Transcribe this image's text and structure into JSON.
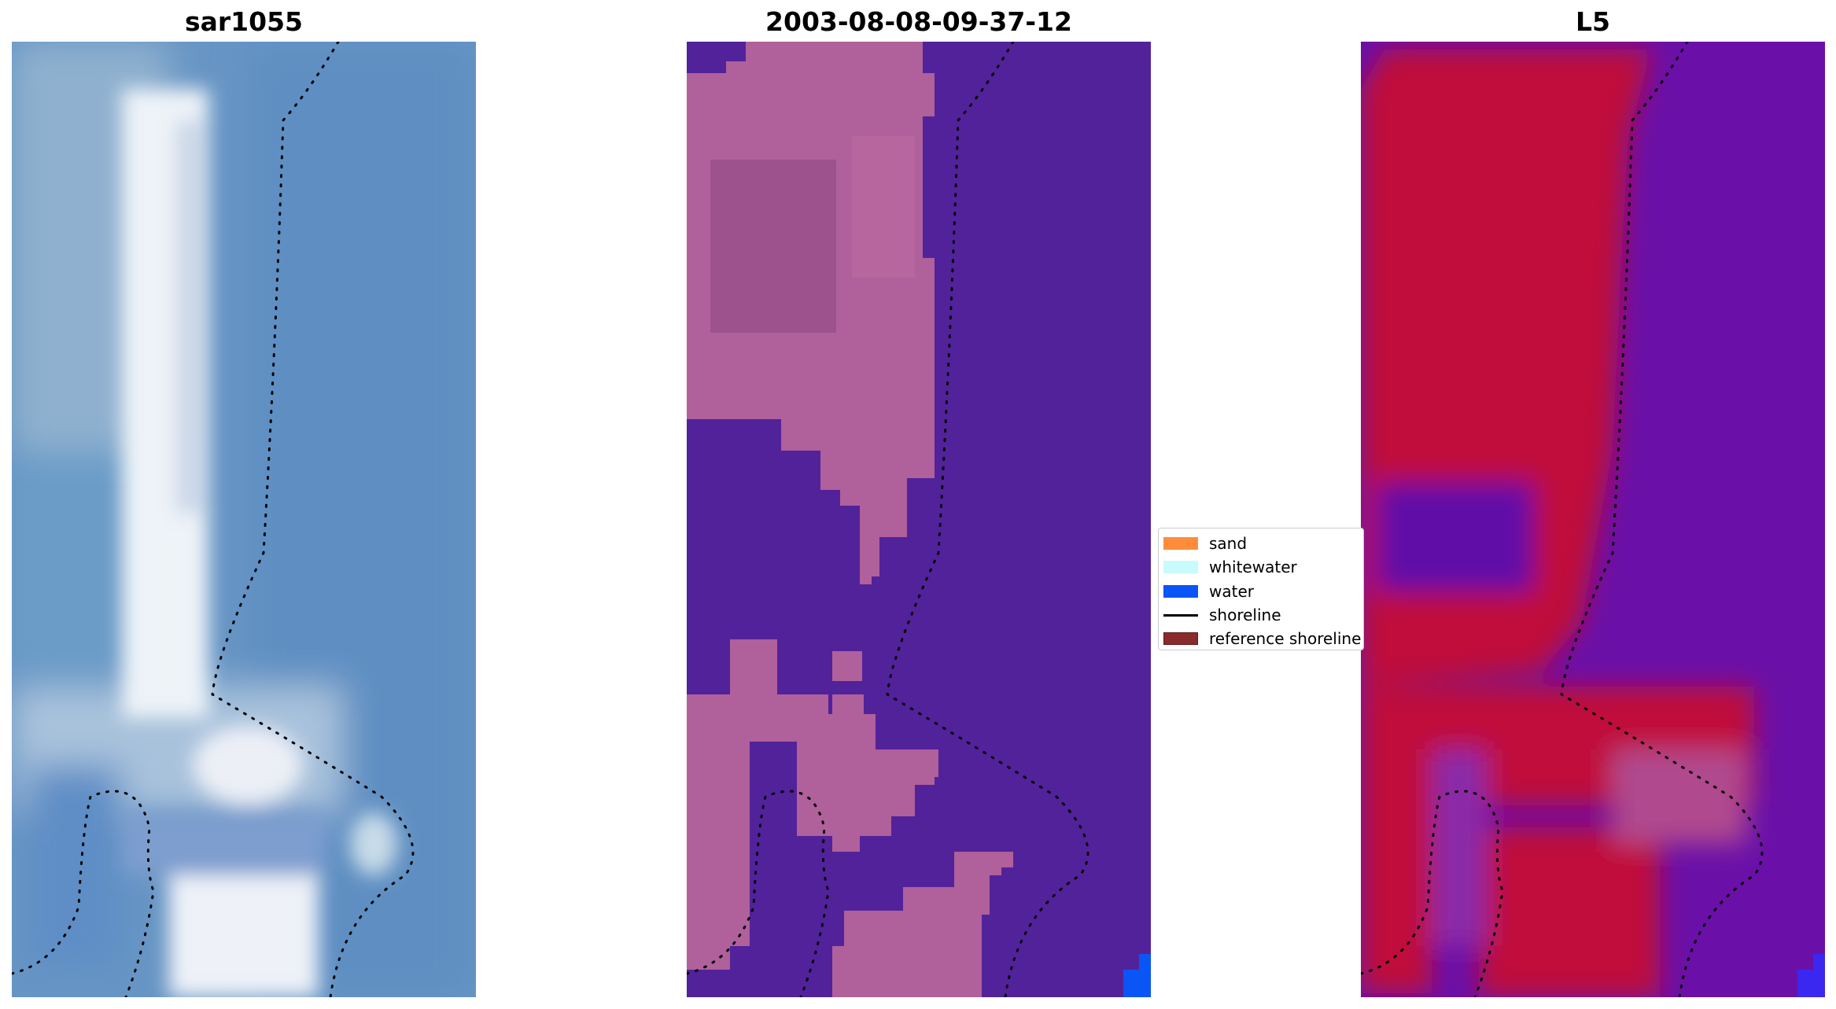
{
  "panels": [
    {
      "title": "sar1055"
    },
    {
      "title": "2003-08-08-09-37-12"
    },
    {
      "title": "L5"
    }
  ],
  "legend": {
    "items": [
      {
        "label": "sand",
        "color": "#ff8c3a",
        "kind": "patch"
      },
      {
        "label": "whitewater",
        "color": "#c8fbfb",
        "kind": "patch"
      },
      {
        "label": "water",
        "color": "#0a55f5",
        "kind": "patch"
      },
      {
        "label": "shoreline",
        "color": "#000000",
        "kind": "line"
      },
      {
        "label": "reference shoreline",
        "color": "#8a2b2e",
        "kind": "patch"
      }
    ]
  },
  "colors": {
    "rgb_water": "#5b8ec4",
    "rgb_sand": "#f4f6fb",
    "class_background": "#52229a",
    "class_overlay": "#b0609a",
    "index_low": "#6a10a8",
    "index_high": "#c00a3a"
  }
}
